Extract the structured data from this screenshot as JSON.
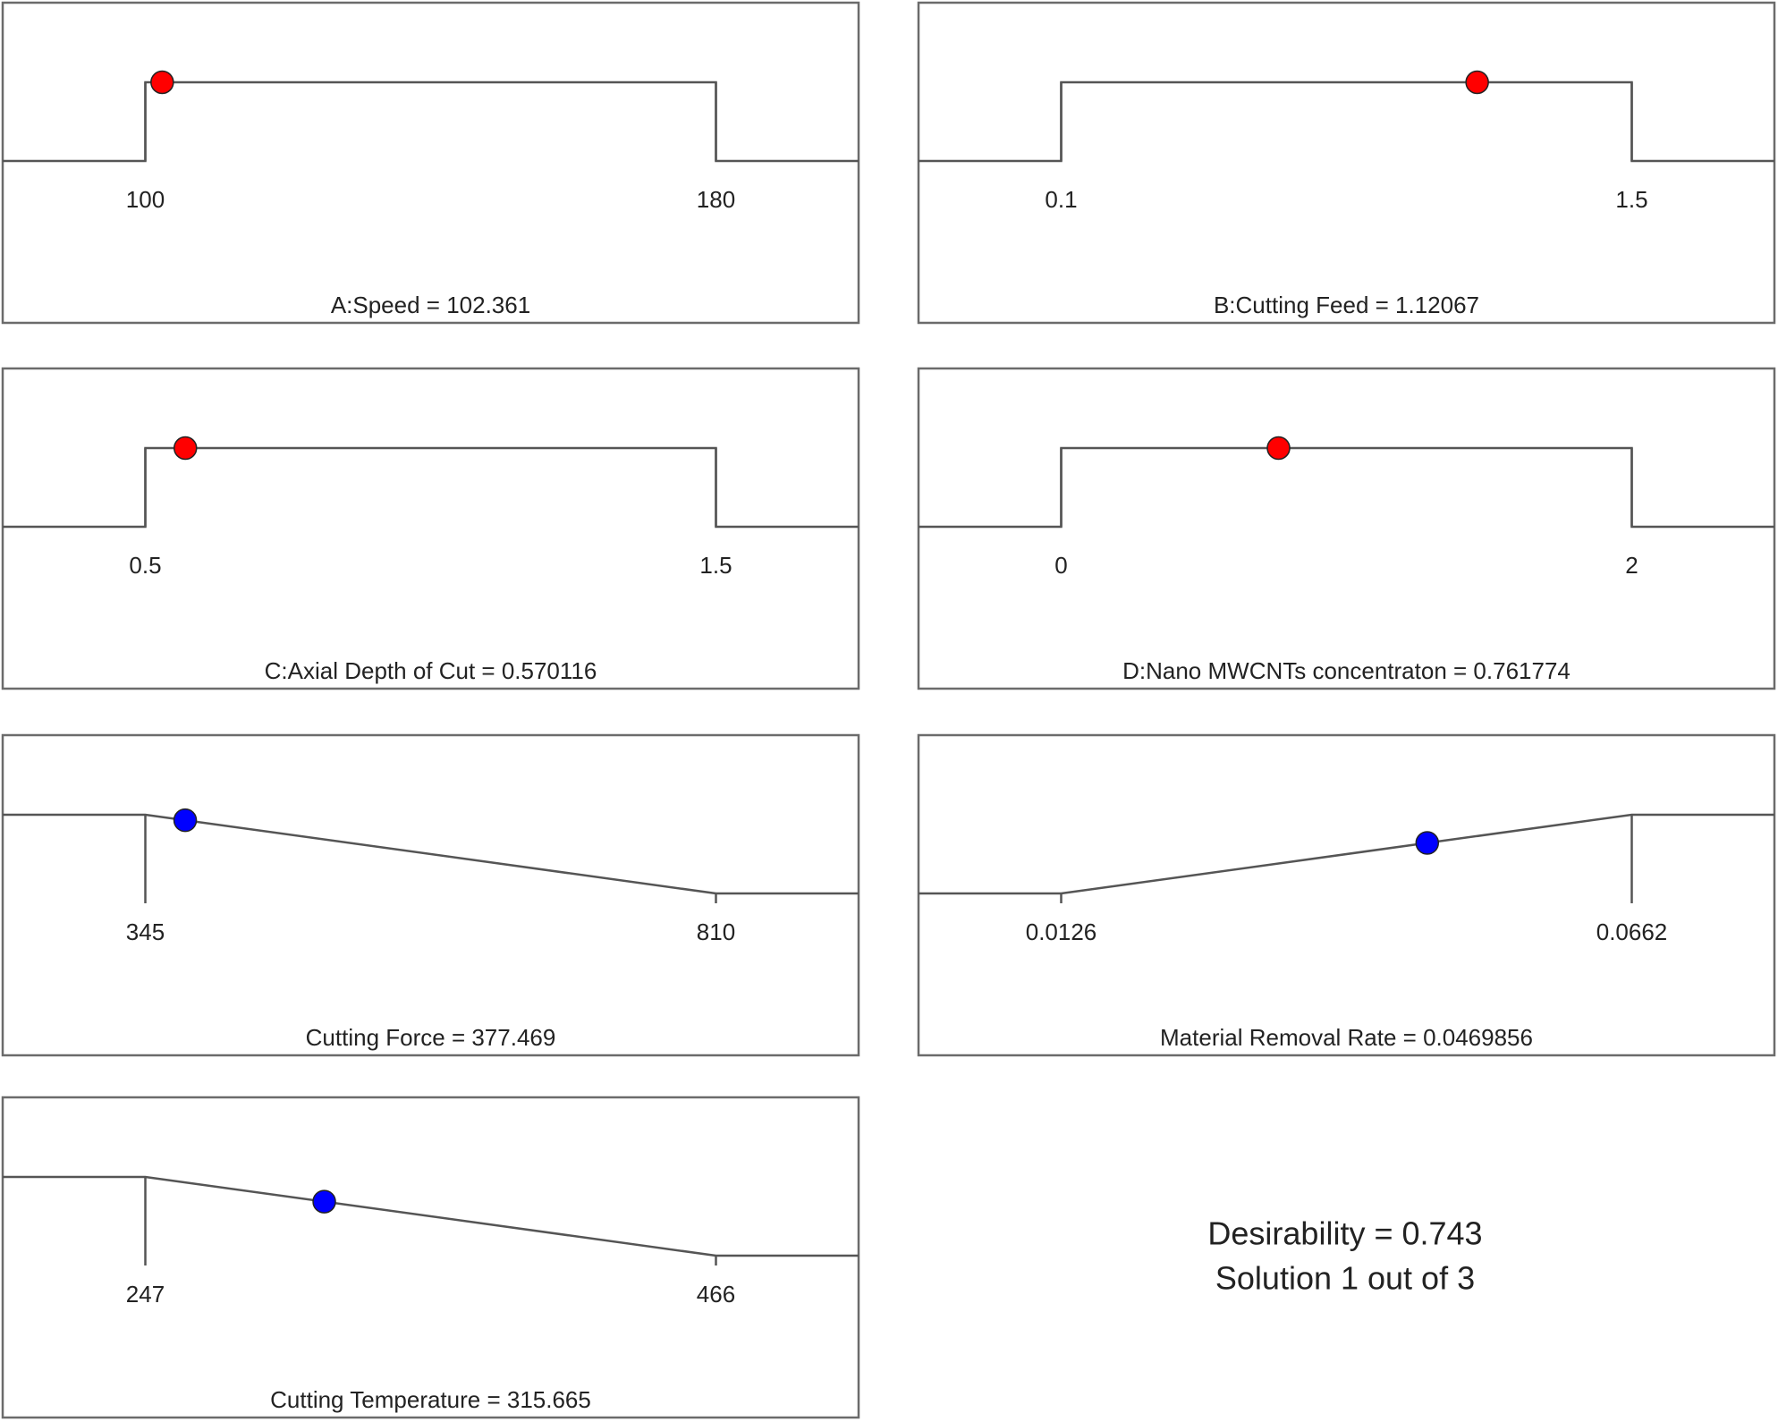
{
  "chart_data": [
    {
      "type": "ramp",
      "title": "A:Speed = 102.361",
      "goal": "in range",
      "xticks": [
        100,
        180
      ],
      "xlim": [
        80,
        200
      ],
      "value": 102.361,
      "color": "#ff0000"
    },
    {
      "type": "ramp",
      "title": "B:Cutting Feed = 1.12067",
      "goal": "in range",
      "xticks": [
        0.1,
        1.5
      ],
      "xlim": [
        -0.25,
        1.85
      ],
      "value": 1.12067,
      "color": "#ff0000"
    },
    {
      "type": "ramp",
      "title": "C:Axial Depth of Cut = 0.570116",
      "goal": "in range",
      "xticks": [
        0.5,
        1.5
      ],
      "xlim": [
        0.25,
        1.75
      ],
      "value": 0.570116,
      "color": "#ff0000"
    },
    {
      "type": "ramp",
      "title": "D:Nano MWCNTs concentraton = 0.761774",
      "goal": "in range",
      "xticks": [
        0,
        2
      ],
      "xlim": [
        -0.5,
        2.5
      ],
      "value": 0.761774,
      "color": "#ff0000"
    },
    {
      "type": "ramp",
      "title": "Cutting Force = 377.469",
      "goal": "minimize",
      "xticks": [
        345,
        810
      ],
      "xlim": [
        228.75,
        926.25
      ],
      "value": 377.469,
      "color": "#0000ff"
    },
    {
      "type": "ramp",
      "title": "Material Removal Rate = 0.0469856",
      "goal": "maximize",
      "xticks": [
        0.0126,
        0.0662
      ],
      "xlim": [
        -0.0008,
        0.0796
      ],
      "value": 0.0469856,
      "color": "#0000ff"
    },
    {
      "type": "ramp",
      "title": "Cutting Temperature = 315.665",
      "goal": "minimize",
      "xticks": [
        247,
        466
      ],
      "xlim": [
        192.25,
        520.75
      ],
      "value": 315.665,
      "color": "#0000ff"
    }
  ],
  "desirability": "Desirability = 0.743",
  "solution": "Solution 1 out of 3"
}
